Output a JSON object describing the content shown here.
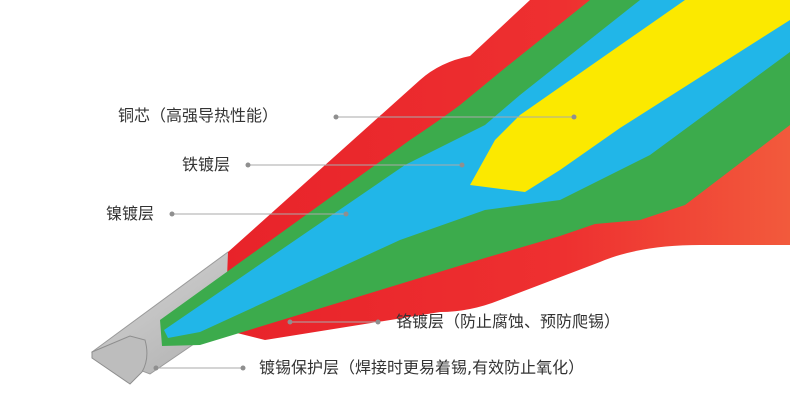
{
  "colors": {
    "chrome_layer": "#ea2e2e",
    "nickel_layer": "#3cab4c",
    "iron_layer": "#21b6e8",
    "copper_core": "#fbe900",
    "tin_layer": "#c9c9c9",
    "leader_line": "#aaaaaa",
    "text": "#333333"
  },
  "labels": {
    "copper_core": "铜芯（高强导热性能）",
    "iron_plating": "铁镀层",
    "nickel_plating": "镍镀层",
    "chrome_plating": "铬镀层（防止腐蚀、预防爬锡）",
    "tin_plating": "镀锡保护层（焊接时更易着锡,有效防止氧化）"
  }
}
